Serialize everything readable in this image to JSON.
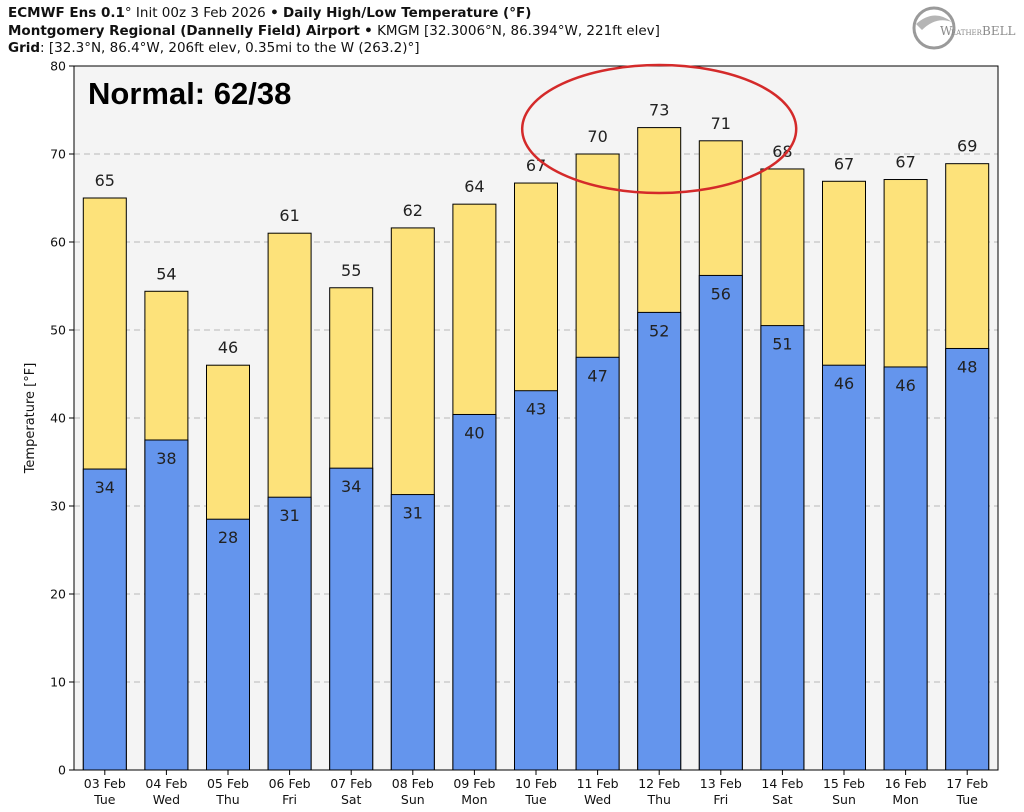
{
  "header": {
    "line1_model": "ECMWF Ens 0.1",
    "line1_deg": "°",
    "line1_init": "Init 00z 3 Feb 2026",
    "line1_sep": "•",
    "line1_title": "Daily High/Low Temperature (°F)",
    "line2_station": "Montgomery Regional (Dannelly Field) Airport",
    "line2_sep": "•",
    "line2_detail": "KMGM [32.3006°N, 86.394°W, 221ft elev]",
    "line3_label": "Grid",
    "line3_detail": ": [32.3°N, 86.4°W, 206ft elev, 0.35mi to the W (263.2)°]"
  },
  "logo": {
    "text_a": "W",
    "text_b": "EATHER",
    "text_c": "BELL"
  },
  "colors": {
    "high": "#fde27a",
    "low": "#6495ed",
    "circle": "#d42a2a",
    "plot_bg": "#f4f4f4"
  },
  "chart_data": {
    "type": "bar",
    "annotation": "Normal: 62/38",
    "ylabel": "Temperature [°F]",
    "ylim": [
      0,
      80
    ],
    "yticks": [
      0,
      10,
      20,
      30,
      40,
      50,
      60,
      70,
      80
    ],
    "grid": true,
    "categories": [
      "03 Feb",
      "04 Feb",
      "05 Feb",
      "06 Feb",
      "07 Feb",
      "08 Feb",
      "09 Feb",
      "10 Feb",
      "11 Feb",
      "12 Feb",
      "13 Feb",
      "14 Feb",
      "15 Feb",
      "16 Feb",
      "17 Feb"
    ],
    "weekdays": [
      "Tue",
      "Wed",
      "Thu",
      "Fri",
      "Sat",
      "Sun",
      "Mon",
      "Tue",
      "Wed",
      "Thu",
      "Fri",
      "Sat",
      "Sun",
      "Mon",
      "Tue"
    ],
    "series": [
      {
        "key": "high",
        "values": [
          65,
          54.4,
          46,
          61,
          54.8,
          61.6,
          64.3,
          66.7,
          70,
          73,
          71.5,
          68.3,
          66.9,
          67.1,
          68.9
        ],
        "labels": [
          65,
          54,
          46,
          61,
          55,
          62,
          64,
          67,
          70,
          73,
          71,
          68,
          67,
          67,
          69
        ]
      },
      {
        "key": "low",
        "values": [
          34.2,
          37.5,
          28.5,
          31,
          34.3,
          31.3,
          40.4,
          43.1,
          46.9,
          52,
          56.2,
          50.5,
          46,
          45.8,
          47.9
        ],
        "labels": [
          34,
          38,
          28,
          31,
          34,
          31,
          40,
          43,
          47,
          52,
          56,
          51,
          46,
          46,
          48
        ]
      }
    ],
    "highlight_days": [
      "11 Feb",
      "12 Feb",
      "13 Feb"
    ]
  }
}
